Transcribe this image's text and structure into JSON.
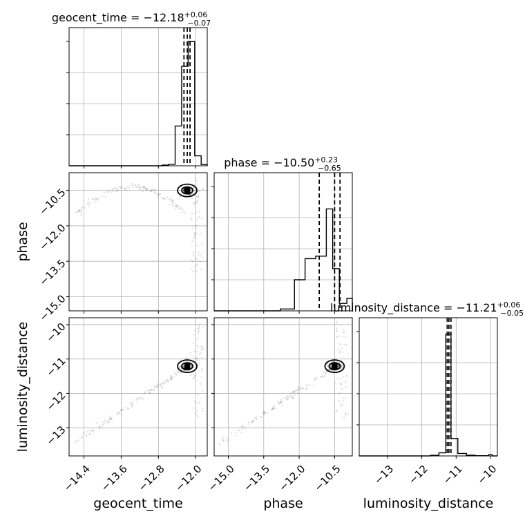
{
  "chart_data": {
    "type": "corner",
    "parameters": [
      "geocent_time",
      "phase",
      "luminosity_distance"
    ],
    "axis_labels": {
      "geocent_time": "geocent_time",
      "phase": "phase",
      "luminosity_distance": "luminosity_distance"
    },
    "titles": [
      {
        "param": "geocent_time",
        "prefix": "geocent_time = ",
        "median": "−12.18",
        "plus": "+0.06",
        "minus": "−0.07"
      },
      {
        "param": "phase",
        "prefix": "phase = ",
        "median": "−10.50",
        "plus": "+0.23",
        "minus": "−0.65"
      },
      {
        "param": "luminosity_distance",
        "prefix": "luminosity_distance = ",
        "median": "−11.21",
        "plus": "+0.06",
        "minus": "−0.05"
      }
    ],
    "ranges": {
      "geocent_time": [
        -14.72,
        -11.75
      ],
      "phase": [
        -15.6,
        -9.75
      ],
      "luminosity_distance": [
        -13.82,
        -9.8
      ]
    },
    "ticks": {
      "geocent_time": [
        -14.4,
        -13.6,
        -12.8,
        -12.0
      ],
      "phase": [
        -15.0,
        -13.5,
        -12.0,
        -10.5
      ],
      "luminosity_distance": [
        -13,
        -12,
        -11,
        -10
      ]
    },
    "tick_labels": {
      "geocent_time": [
        "−14.4",
        "−13.6",
        "−12.8",
        "−12.0"
      ],
      "phase": [
        "−15.0",
        "−13.5",
        "−12.0",
        "−10.5"
      ],
      "luminosity_distance": [
        "−13",
        "−12",
        "−11",
        "−10"
      ]
    },
    "quantiles": {
      "geocent_time": [
        -12.25,
        -12.18,
        -12.12
      ],
      "phase": [
        -11.15,
        -10.5,
        -10.27
      ],
      "luminosity_distance": [
        -11.26,
        -11.21,
        -11.15
      ]
    },
    "histograms": {
      "geocent_time": {
        "edges": [
          -12.72,
          -12.58,
          -12.44,
          -12.3,
          -12.16,
          -12.02,
          -11.88,
          -11.75
        ],
        "counts": [
          0.006,
          0.012,
          0.32,
          0.8,
          1.0,
          0.08,
          0.01
        ]
      },
      "phase": {
        "edges": [
          -12.8,
          -12.2,
          -11.75,
          -11.3,
          -10.85,
          -10.58,
          -10.3,
          -9.98,
          -9.75
        ],
        "counts": [
          0.015,
          0.25,
          0.42,
          0.44,
          0.82,
          0.34,
          0.06,
          0.1
        ]
      },
      "luminosity_distance": {
        "edges": [
          -11.75,
          -11.5,
          -11.3,
          -11.15,
          -10.95,
          -10.7,
          -10.45,
          -10.05,
          -9.95
        ],
        "counts": [
          0.005,
          0.025,
          0.98,
          0.14,
          0.02,
          0.006,
          0.002,
          0.01
        ]
      }
    },
    "peaks": {
      "geocent_time": -12.18,
      "phase": -10.5,
      "luminosity_distance": -11.21
    },
    "grid": true
  }
}
